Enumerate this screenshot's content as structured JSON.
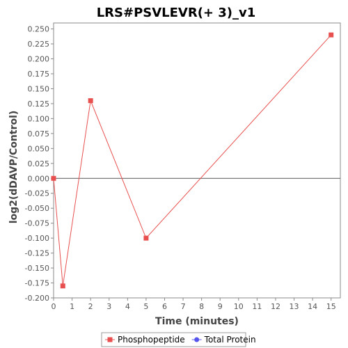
{
  "chart_data": {
    "type": "line",
    "title": "LRS#PSVLEVR(+ 3)_v1",
    "xlabel": "Time (minutes)",
    "ylabel": "log2(dDAVP/Control)",
    "xlim": [
      0,
      15.5
    ],
    "ylim": [
      -0.2,
      0.26
    ],
    "x_ticks": [
      0,
      1,
      2,
      3,
      4,
      5,
      6,
      7,
      8,
      9,
      10,
      11,
      12,
      13,
      14,
      15
    ],
    "y_ticks": [
      -0.2,
      -0.175,
      -0.15,
      -0.125,
      -0.1,
      -0.075,
      -0.05,
      -0.025,
      0.0,
      0.025,
      0.05,
      0.075,
      0.1,
      0.125,
      0.15,
      0.175,
      0.2,
      0.225,
      0.25
    ],
    "y_tick_labels": [
      "-0.200",
      "-0.175",
      "-0.150",
      "-0.125",
      "-0.100",
      "-0.075",
      "-0.050",
      "-0.025",
      "0.000",
      "0.025",
      "0.050",
      "0.075",
      "0.100",
      "0.125",
      "0.150",
      "0.175",
      "0.200",
      "0.225",
      "0.250"
    ],
    "zero_line": true,
    "grid": false,
    "legend_position": "bottom",
    "series": [
      {
        "name": "Phosphopeptide",
        "color": "#e85050",
        "marker": "square",
        "x": [
          0,
          0.5,
          2,
          5,
          15
        ],
        "y": [
          0.0,
          -0.18,
          0.13,
          -0.1,
          0.24
        ]
      },
      {
        "name": "Total Protein",
        "color": "#5555ee",
        "marker": "circle",
        "x": [],
        "y": []
      }
    ]
  }
}
